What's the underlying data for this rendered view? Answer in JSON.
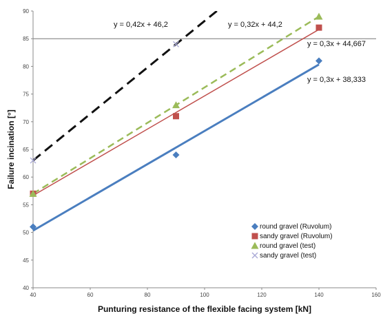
{
  "chart_data": {
    "type": "scatter",
    "xlabel": "Punturing resistance of the flexible facing system [kN]",
    "ylabel": "Failure incination [°]",
    "xlim": [
      40,
      160
    ],
    "ylim": [
      40,
      90
    ],
    "xticks": [
      40,
      60,
      80,
      100,
      120,
      140,
      160
    ],
    "yticks": [
      40,
      45,
      50,
      55,
      60,
      65,
      70,
      75,
      80,
      85,
      90
    ],
    "grid": "horizontal",
    "legend_position": "bottom-right",
    "reference_line_y": 85,
    "series": [
      {
        "name": "round gravel  (Ruvolum)",
        "marker": "diamond",
        "color": "#4a7ebf",
        "x": [
          40,
          90,
          140
        ],
        "y": [
          51,
          64,
          81
        ],
        "trendline": {
          "slope": 0.3,
          "intercept": 38.333,
          "style": "solid",
          "width": 3,
          "label": "y = 0,3x + 38,333"
        }
      },
      {
        "name": "sandy gravel (Ruvolum)",
        "marker": "square",
        "color": "#c0504d",
        "x": [
          40,
          90,
          140
        ],
        "y": [
          57,
          71,
          87
        ],
        "trendline": {
          "slope": 0.3,
          "intercept": 44.667,
          "style": "solid",
          "width": 1.5,
          "label": "y = 0,3x + 44,667"
        }
      },
      {
        "name": "round gravel  (test)",
        "marker": "triangle",
        "color": "#9bbb59",
        "x": [
          40,
          90,
          140
        ],
        "y": [
          57,
          73,
          89
        ],
        "trendline": {
          "slope": 0.32,
          "intercept": 44.2,
          "style": "dashed",
          "width": 2.5,
          "label": "y = 0,32x + 44,2"
        }
      },
      {
        "name": "sandy gravel (test)",
        "marker": "cross",
        "color": "#a9a9d6",
        "trendline_color": "#111111",
        "x": [
          40,
          90
        ],
        "y": [
          63,
          84
        ],
        "trendline": {
          "slope": 0.42,
          "intercept": 46.2,
          "style": "dashed",
          "width": 3,
          "label": "y = 0,42x + 46,2"
        }
      }
    ]
  }
}
